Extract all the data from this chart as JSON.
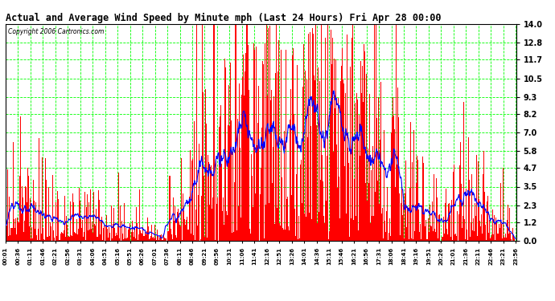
{
  "title": "Actual and Average Wind Speed by Minute mph (Last 24 Hours) Fri Apr 28 00:00",
  "copyright": "Copyright 2006 Cartronics.com",
  "yticks": [
    0.0,
    1.2,
    2.3,
    3.5,
    4.7,
    5.8,
    7.0,
    8.2,
    9.3,
    10.5,
    11.7,
    12.8,
    14.0
  ],
  "xtick_labels": [
    "00:01",
    "00:36",
    "01:11",
    "01:46",
    "02:21",
    "02:56",
    "03:31",
    "04:06",
    "04:51",
    "05:16",
    "05:51",
    "06:26",
    "07:01",
    "07:36",
    "08:11",
    "08:46",
    "09:21",
    "09:56",
    "10:31",
    "11:06",
    "11:41",
    "12:16",
    "12:51",
    "13:26",
    "14:01",
    "14:36",
    "15:11",
    "15:46",
    "16:21",
    "16:56",
    "17:31",
    "18:06",
    "18:41",
    "19:16",
    "19:51",
    "20:26",
    "21:01",
    "21:36",
    "22:11",
    "22:46",
    "23:21",
    "23:56"
  ],
  "bar_color": "#FF0000",
  "line_color": "#0000FF",
  "grid_color": "#00FF00",
  "bg_color": "#FFFFFF",
  "plot_bg": "#FFFFFF",
  "ylim": [
    0.0,
    14.0
  ],
  "figsize": [
    6.9,
    3.75
  ],
  "dpi": 100,
  "avg_window": 30
}
